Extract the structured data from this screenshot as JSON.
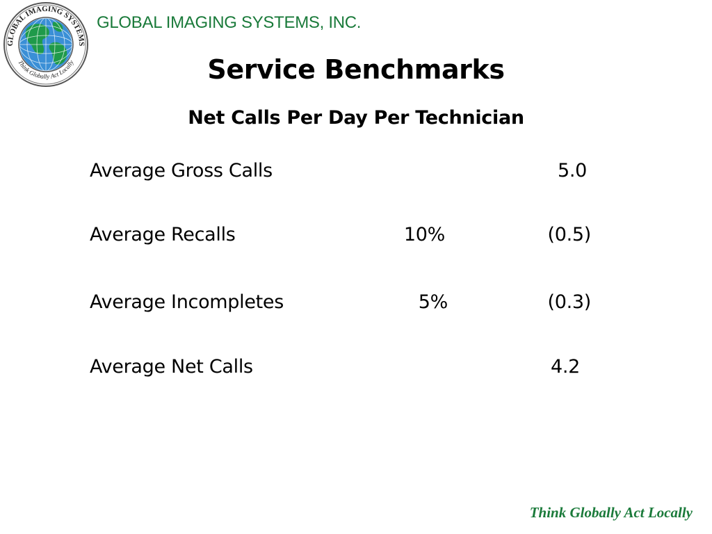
{
  "header": {
    "company_name": "GLOBAL IMAGING SYSTEMS, INC.",
    "logo": {
      "icon": "globe-seal-icon",
      "ring_text_top": "GLOBAL IMAGING SYSTEMS",
      "ring_text_bottom": "Think Globally Act Locally",
      "colors": {
        "ocean": "#3a8fd6",
        "land": "#1f9a4a",
        "ring": "#ffffff"
      }
    }
  },
  "title": "Service Benchmarks",
  "subtitle": "Net Calls Per Day Per Technician",
  "rows": [
    {
      "label": "Average Gross Calls",
      "percent": "",
      "value": "5.0"
    },
    {
      "label": "Average Recalls",
      "percent": "10%",
      "value": "(0.5)"
    },
    {
      "label": "Average Incompletes",
      "percent": "5%",
      "value": "(0.3)"
    },
    {
      "label": "Average Net Calls",
      "percent": "",
      "value": "4.2"
    }
  ],
  "footer": {
    "tagline": "Think Globally Act Locally"
  },
  "colors": {
    "brand_green": "#1a7a3a",
    "text": "#000000",
    "background": "#ffffff"
  }
}
